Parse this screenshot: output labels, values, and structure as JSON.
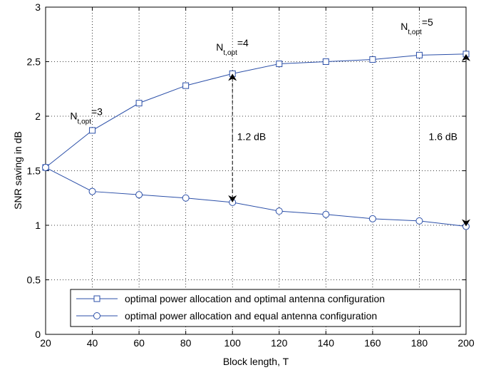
{
  "chart_data": {
    "type": "line",
    "xlabel": "Block length, T",
    "ylabel": "SNR saving in dB",
    "xlim": [
      20,
      200
    ],
    "ylim": [
      0,
      3
    ],
    "xticks": [
      20,
      40,
      60,
      80,
      100,
      120,
      140,
      160,
      180,
      200
    ],
    "yticks": [
      0,
      0.5,
      1,
      1.5,
      2,
      2.5,
      3
    ],
    "xtick_labels": [
      "20",
      "40",
      "60",
      "80",
      "100",
      "120",
      "140",
      "160",
      "180",
      "200"
    ],
    "ytick_labels": [
      "0",
      "0.5",
      "1",
      "1.5",
      "2",
      "2.5",
      "3"
    ],
    "grid": true,
    "legend_position": "bottom-right",
    "series": [
      {
        "name": "optimal power allocation and optimal antenna configuration",
        "marker": "square",
        "color": "#2b4fa8",
        "x": [
          20,
          40,
          60,
          80,
          100,
          120,
          140,
          160,
          180,
          200
        ],
        "y": [
          1.53,
          1.87,
          2.12,
          2.28,
          2.39,
          2.48,
          2.5,
          2.52,
          2.56,
          2.57
        ]
      },
      {
        "name": "optimal power allocation and equal antenna configuration",
        "marker": "circle",
        "color": "#2b4fa8",
        "x": [
          20,
          40,
          60,
          80,
          100,
          120,
          140,
          160,
          180,
          200
        ],
        "y": [
          1.53,
          1.31,
          1.28,
          1.25,
          1.21,
          1.13,
          1.1,
          1.06,
          1.04,
          0.99
        ]
      }
    ],
    "annotations": [
      {
        "base": "N",
        "sub": "t,opt",
        "value": "=3",
        "x": 30.5,
        "y": 1.97
      },
      {
        "base": "N",
        "sub": "t,opt",
        "value": "=4",
        "x": 93,
        "y": 2.6
      },
      {
        "base": "N",
        "sub": "t,opt",
        "value": "=5",
        "x": 172,
        "y": 2.79
      },
      {
        "text": "1.2 dB",
        "x": 102,
        "y": 1.78
      },
      {
        "text": "1.6 dB",
        "x": 184,
        "y": 1.78
      }
    ],
    "arrows": [
      {
        "x": 100,
        "y_from": 1.21,
        "y_to": 2.39
      },
      {
        "x": 200,
        "y_from": 0.99,
        "y_to": 2.57
      }
    ]
  }
}
